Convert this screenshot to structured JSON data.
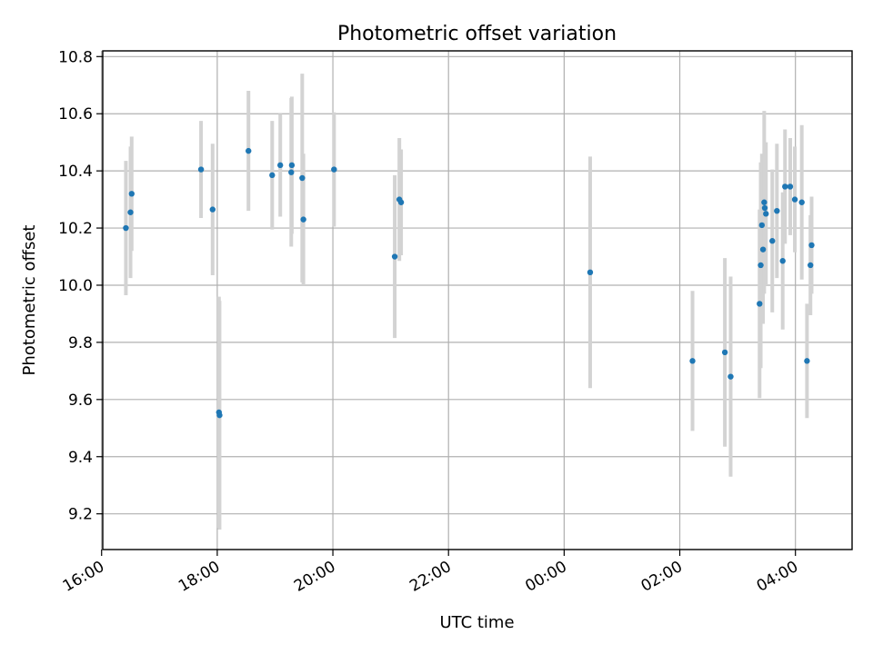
{
  "chart_data": {
    "type": "scatter",
    "title": "Photometric offset variation",
    "xlabel": "UTC time",
    "ylabel": "Photometric offset",
    "x_unit": "UTC time, hours relative to 00:00 (negative = previous day)",
    "xlim": [
      -7.98,
      4.98
    ],
    "ylim": [
      9.075,
      10.82
    ],
    "x_ticks": [
      {
        "value": -8,
        "label": "16:00"
      },
      {
        "value": -6,
        "label": "18:00"
      },
      {
        "value": -4,
        "label": "20:00"
      },
      {
        "value": -2,
        "label": "22:00"
      },
      {
        "value": 0,
        "label": "00:00"
      },
      {
        "value": 2,
        "label": "02:00"
      },
      {
        "value": 4,
        "label": "04:00"
      }
    ],
    "y_ticks": [
      {
        "value": 9.2,
        "label": "9.2"
      },
      {
        "value": 9.4,
        "label": "9.4"
      },
      {
        "value": 9.6,
        "label": "9.6"
      },
      {
        "value": 9.8,
        "label": "9.8"
      },
      {
        "value": 10.0,
        "label": "10.0"
      },
      {
        "value": 10.2,
        "label": "10.2"
      },
      {
        "value": 10.4,
        "label": "10.4"
      },
      {
        "value": 10.6,
        "label": "10.6"
      },
      {
        "value": 10.8,
        "label": "10.8"
      }
    ],
    "grid": true,
    "colors": {
      "point": "#1f77b4",
      "errorbar": "#d3d3d3",
      "grid": "#b0b0b0"
    },
    "points": [
      {
        "x": -7.58,
        "y": 10.2,
        "err": 0.235
      },
      {
        "x": -7.5,
        "y": 10.255,
        "err": 0.23
      },
      {
        "x": -7.48,
        "y": 10.32,
        "err": 0.2
      },
      {
        "x": -6.28,
        "y": 10.405,
        "err": 0.17
      },
      {
        "x": -6.08,
        "y": 10.265,
        "err": 0.23
      },
      {
        "x": -5.97,
        "y": 9.555,
        "err": 0.405
      },
      {
        "x": -5.96,
        "y": 9.545,
        "err": 0.4
      },
      {
        "x": -5.46,
        "y": 10.47,
        "err": 0.21
      },
      {
        "x": -5.05,
        "y": 10.385,
        "err": 0.19
      },
      {
        "x": -4.91,
        "y": 10.42,
        "err": 0.18
      },
      {
        "x": -4.72,
        "y": 10.395,
        "err": 0.26
      },
      {
        "x": -4.71,
        "y": 10.42,
        "err": 0.24
      },
      {
        "x": -4.53,
        "y": 10.375,
        "err": 0.365
      },
      {
        "x": -4.51,
        "y": 10.23,
        "err": 0.23
      },
      {
        "x": -3.98,
        "y": 10.405,
        "err": 0.2
      },
      {
        "x": -2.93,
        "y": 10.1,
        "err": 0.285
      },
      {
        "x": -2.85,
        "y": 10.3,
        "err": 0.215
      },
      {
        "x": -2.82,
        "y": 10.29,
        "err": 0.185
      },
      {
        "x": 0.45,
        "y": 10.045,
        "err": 0.405
      },
      {
        "x": 2.22,
        "y": 9.735,
        "err": 0.245
      },
      {
        "x": 2.78,
        "y": 9.765,
        "err": 0.33
      },
      {
        "x": 2.88,
        "y": 9.68,
        "err": 0.35
      },
      {
        "x": 3.38,
        "y": 9.935,
        "err": 0.33
      },
      {
        "x": 3.4,
        "y": 10.07,
        "err": 0.36
      },
      {
        "x": 3.42,
        "y": 10.21,
        "err": 0.25
      },
      {
        "x": 3.44,
        "y": 10.125,
        "err": 0.26
      },
      {
        "x": 3.46,
        "y": 10.29,
        "err": 0.32
      },
      {
        "x": 3.47,
        "y": 10.27,
        "err": 0.22
      },
      {
        "x": 3.49,
        "y": 10.25,
        "err": 0.25
      },
      {
        "x": 3.6,
        "y": 10.155,
        "err": 0.25
      },
      {
        "x": 3.68,
        "y": 10.26,
        "err": 0.235
      },
      {
        "x": 3.78,
        "y": 10.085,
        "err": 0.24
      },
      {
        "x": 3.82,
        "y": 10.345,
        "err": 0.2
      },
      {
        "x": 3.91,
        "y": 10.345,
        "err": 0.17
      },
      {
        "x": 3.99,
        "y": 10.3,
        "err": 0.185
      },
      {
        "x": 4.11,
        "y": 10.29,
        "err": 0.27
      },
      {
        "x": 4.2,
        "y": 9.735,
        "err": 0.2
      },
      {
        "x": 4.26,
        "y": 10.07,
        "err": 0.175
      },
      {
        "x": 4.28,
        "y": 10.14,
        "err": 0.17
      }
    ]
  }
}
